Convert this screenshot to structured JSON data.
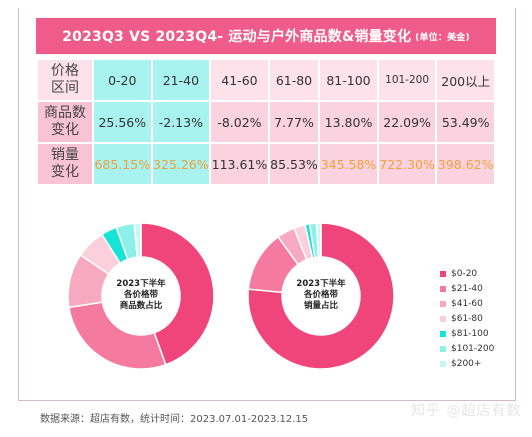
{
  "title": {
    "main": "2023Q3 VS 2023Q4- 运动与户外商品数&销量变化",
    "unit": "(单位：美金)"
  },
  "table": {
    "row_headers": [
      "价格\n区间",
      "商品数\n变化",
      "销量\n变化"
    ],
    "price_ranges": [
      "0-20",
      "21-40",
      "41-60",
      "61-80",
      "81-100",
      "101-200",
      "200以上"
    ],
    "product_change": [
      "25.56%",
      "-2.13%",
      "-8.02%",
      "7.77%",
      "13.80%",
      "22.09%",
      "53.49%"
    ],
    "sales_change": [
      "685.15%",
      "325.26%",
      "113.61%",
      "85.53%",
      "345.58%",
      "722.30%",
      "398.62%"
    ]
  },
  "chart_data": [
    {
      "type": "pie",
      "center_label": [
        "2023下半年",
        "各价格带",
        "商品数占比"
      ],
      "categories": [
        "$0-20",
        "$21-40",
        "$41-60",
        "$61-80",
        "$81-100",
        "$101-200",
        "$200+"
      ],
      "values": [
        44.5,
        28,
        12,
        6.5,
        3.5,
        4,
        1.5
      ]
    },
    {
      "type": "pie",
      "center_label": [
        "2023下半年",
        "各价格带",
        "销量占比"
      ],
      "categories": [
        "$0-20",
        "$21-40",
        "$41-60",
        "$61-80",
        "$81-100",
        "$101-200",
        "$200+"
      ],
      "values": [
        76.5,
        13.5,
        4,
        2.5,
        1,
        1.5,
        1
      ]
    }
  ],
  "legend": [
    {
      "label": "$0-20",
      "color": "#f0457a"
    },
    {
      "label": "$21-40",
      "color": "#f57aa0"
    },
    {
      "label": "$41-60",
      "color": "#f8a9c2"
    },
    {
      "label": "$61-80",
      "color": "#fbcfdc"
    },
    {
      "label": "$81-100",
      "color": "#17e3d6"
    },
    {
      "label": "$101-200",
      "color": "#8cefe8"
    },
    {
      "label": "$200+",
      "color": "#c9f7f3"
    }
  ],
  "footer": "数据来源：超店有数，统计时间：2023.07.01-2023.12.15",
  "watermark": "知乎 @超店有数"
}
